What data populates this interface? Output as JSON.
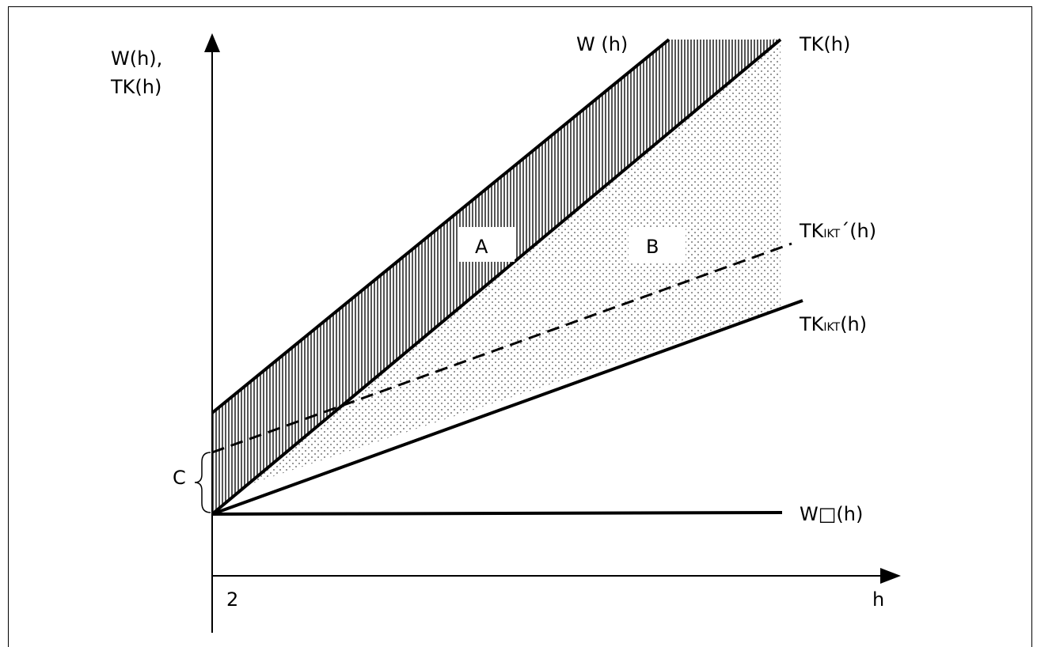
{
  "axes": {
    "y_label_line1": "W(h),",
    "y_label_line2": "TK(h)",
    "x_label": "h",
    "origin_tick_label": "2"
  },
  "curves": {
    "w": {
      "label": "W (h)"
    },
    "tk": {
      "label": "TK(h)"
    },
    "tk_ikt_prime": {
      "label_main": "TK",
      "label_sub": "IKT",
      "label_tail": "´(h)"
    },
    "tk_ikt": {
      "label_main": "TK",
      "label_sub": "IKT",
      "label_tail": "(h)"
    },
    "w_box": {
      "label": "W□(h)"
    }
  },
  "regions": {
    "a": "A",
    "b": "B",
    "c": "C"
  }
}
